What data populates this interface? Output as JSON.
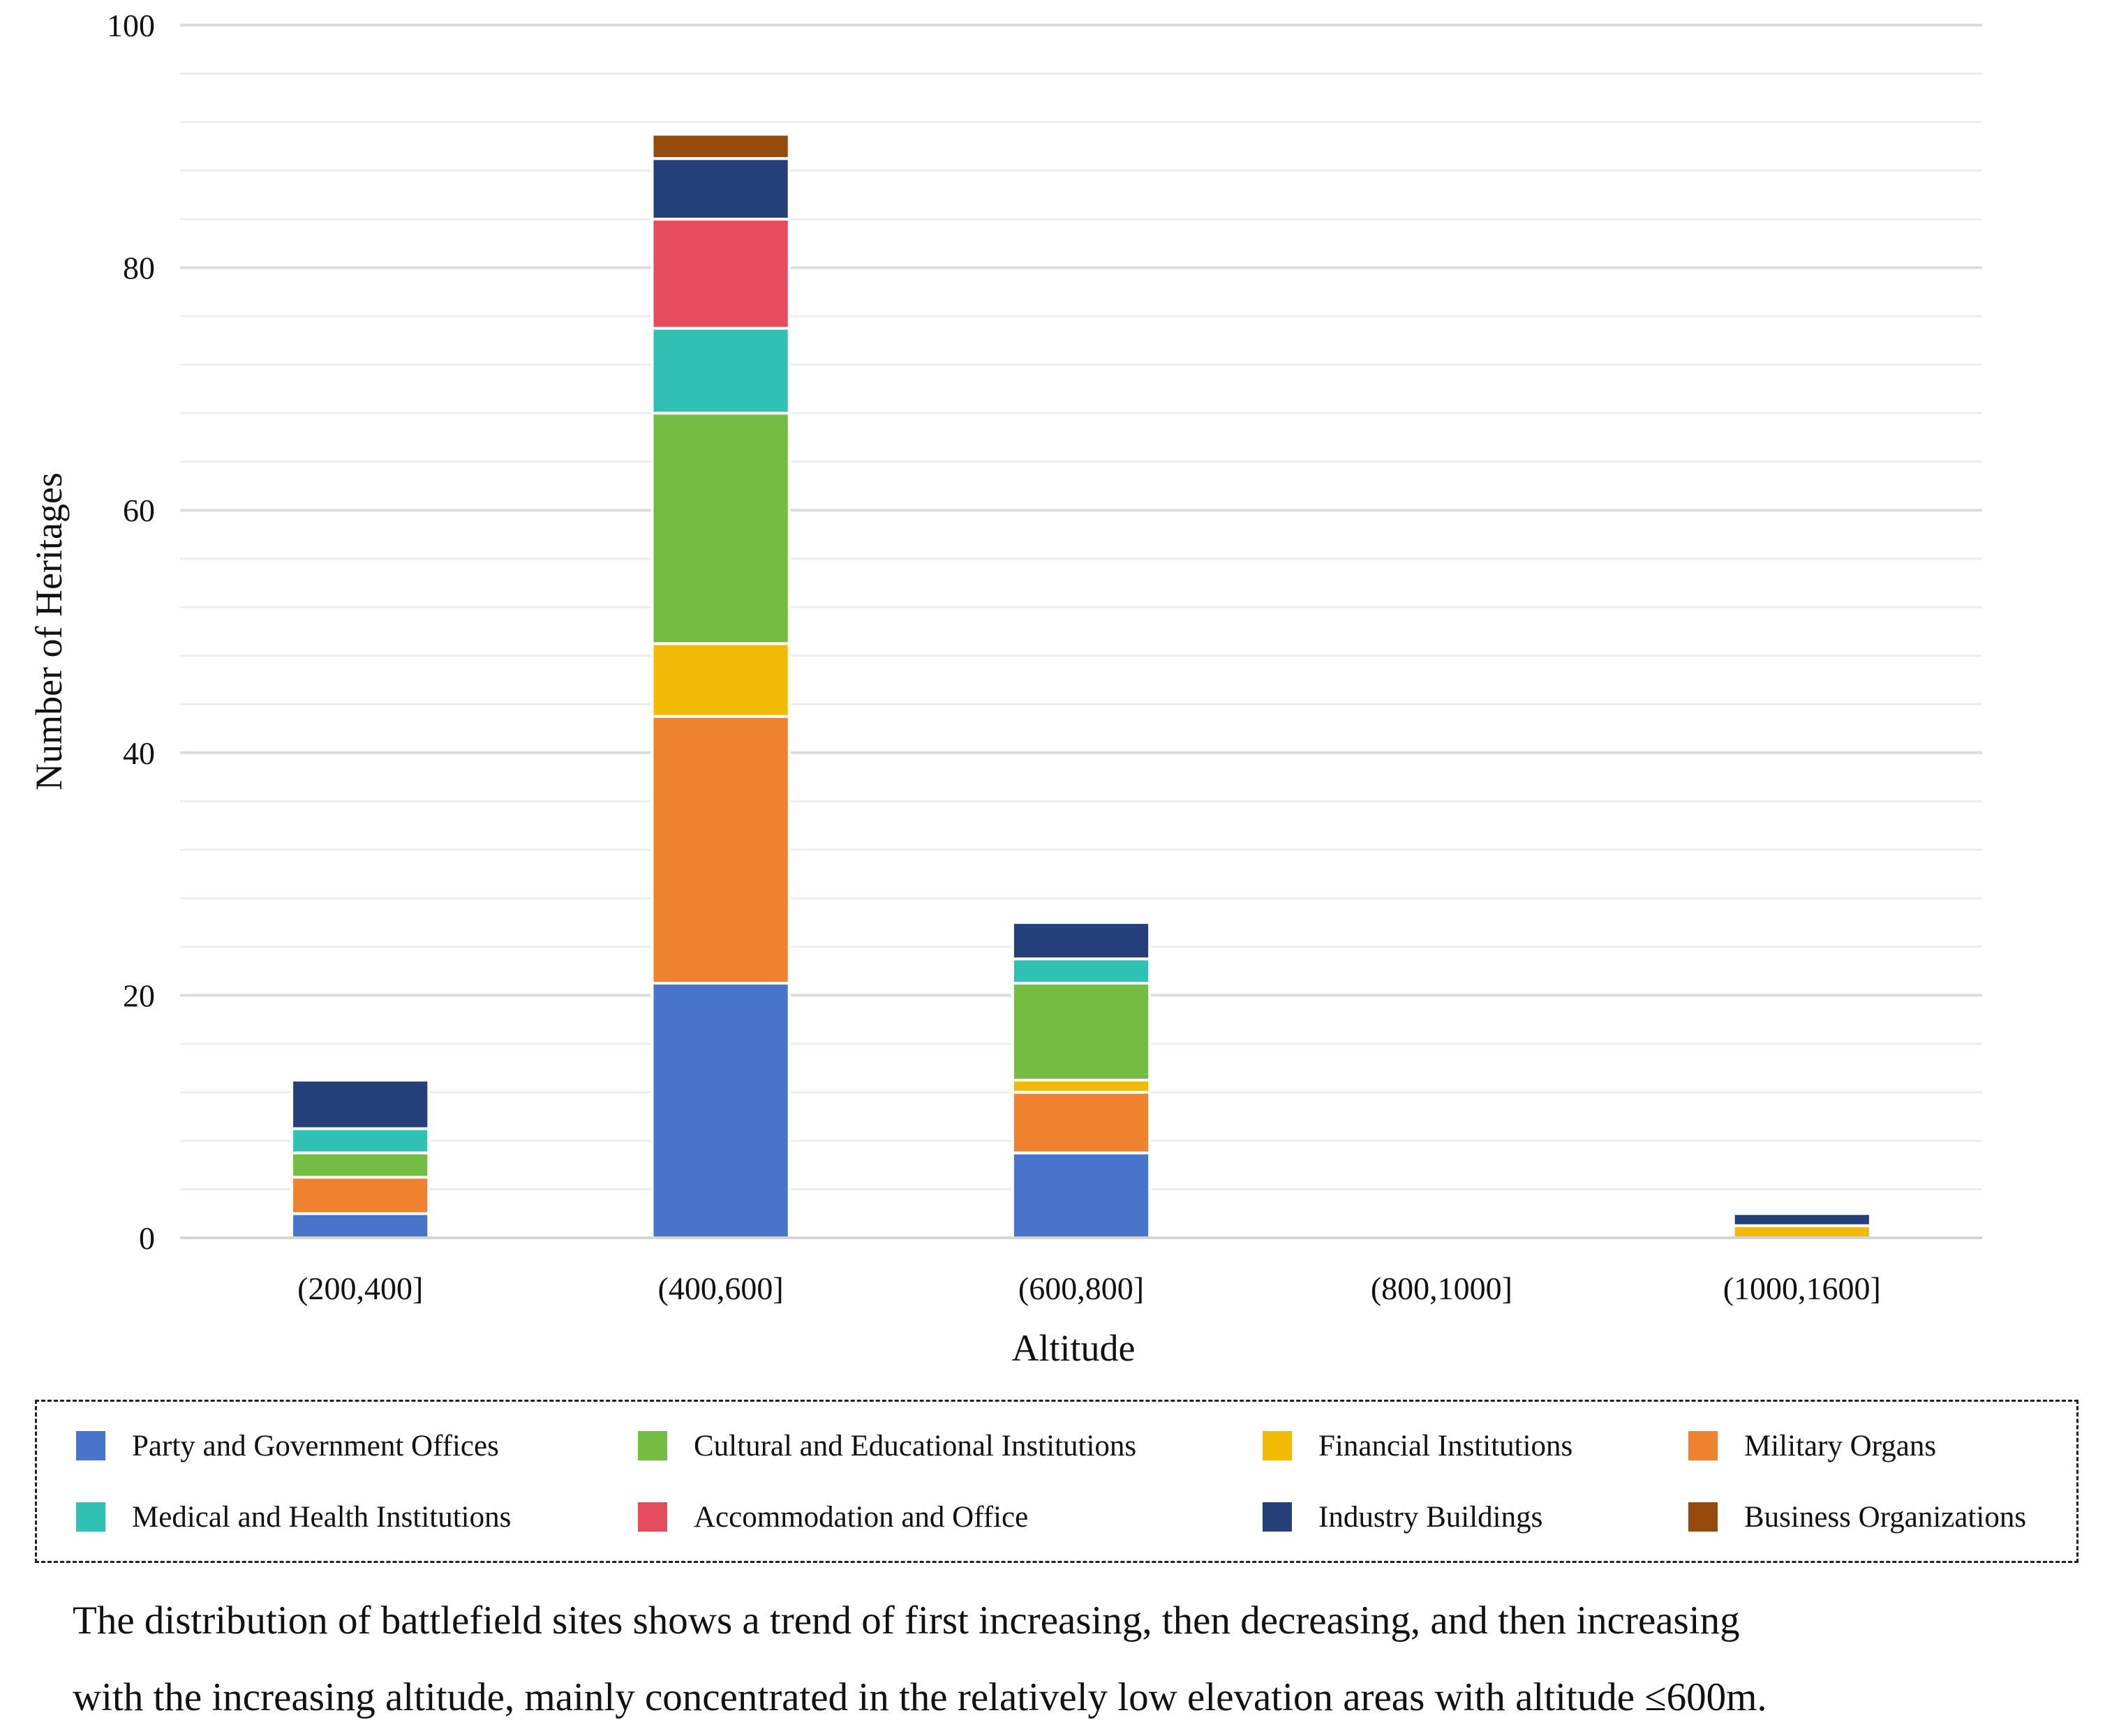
{
  "chart_data": {
    "type": "bar",
    "stacked": true,
    "title": "",
    "xlabel": "Altitude",
    "ylabel": "Number of Heritages",
    "categories": [
      "(200,400]",
      "(400,600]",
      "(600,800]",
      "(800,1000]",
      "(1000,1600]"
    ],
    "ylim": [
      0,
      100
    ],
    "yticks": [
      0,
      20,
      40,
      60,
      80,
      100
    ],
    "grid": true,
    "legend_position": "bottom",
    "series": [
      {
        "name": "Party and Government Offices",
        "color": "#4874CB",
        "values": [
          2,
          21,
          7,
          0,
          0
        ]
      },
      {
        "name": "Military Organs",
        "color": "#EE822F",
        "values": [
          3,
          22,
          5,
          0,
          0
        ]
      },
      {
        "name": "Financial Institutions",
        "color": "#F2BA02",
        "values": [
          0,
          6,
          1,
          0,
          1
        ]
      },
      {
        "name": "Cultural and Educational Institutions",
        "color": "#75BD42",
        "values": [
          2,
          19,
          8,
          0,
          0
        ]
      },
      {
        "name": "Medical and Health Institutions",
        "color": "#30C0B4",
        "values": [
          2,
          7,
          2,
          0,
          0
        ]
      },
      {
        "name": "Accommodation and Office",
        "color": "#E54C5E",
        "values": [
          0,
          9,
          0,
          0,
          0
        ]
      },
      {
        "name": "Industry Buildings",
        "color": "#253F7A",
        "values": [
          4,
          5,
          3,
          0,
          1
        ]
      },
      {
        "name": "Business Organizations",
        "color": "#964B0E",
        "values": [
          0,
          2,
          0,
          0,
          0
        ]
      }
    ]
  },
  "legend": {
    "items": [
      {
        "label": "Party and Government Offices",
        "color": "#4874CB"
      },
      {
        "label": "Cultural and Educational Institutions",
        "color": "#75BD42"
      },
      {
        "label": "Financial Institutions",
        "color": "#F2BA02"
      },
      {
        "label": "Military Organs",
        "color": "#EE822F"
      },
      {
        "label": "Medical and Health Institutions",
        "color": "#30C0B4"
      },
      {
        "label": "Accommodation and Office",
        "color": "#E54C5E"
      },
      {
        "label": "Industry Buildings",
        "color": "#253F7A"
      },
      {
        "label": "Business Organizations",
        "color": "#964B0E"
      }
    ]
  },
  "caption": {
    "line1": "The distribution of battlefield sites shows a trend of first increasing, then decreasing, and then increasing",
    "line2": "with the increasing altitude, mainly concentrated in the relatively low elevation areas with altitude ≤600m."
  }
}
